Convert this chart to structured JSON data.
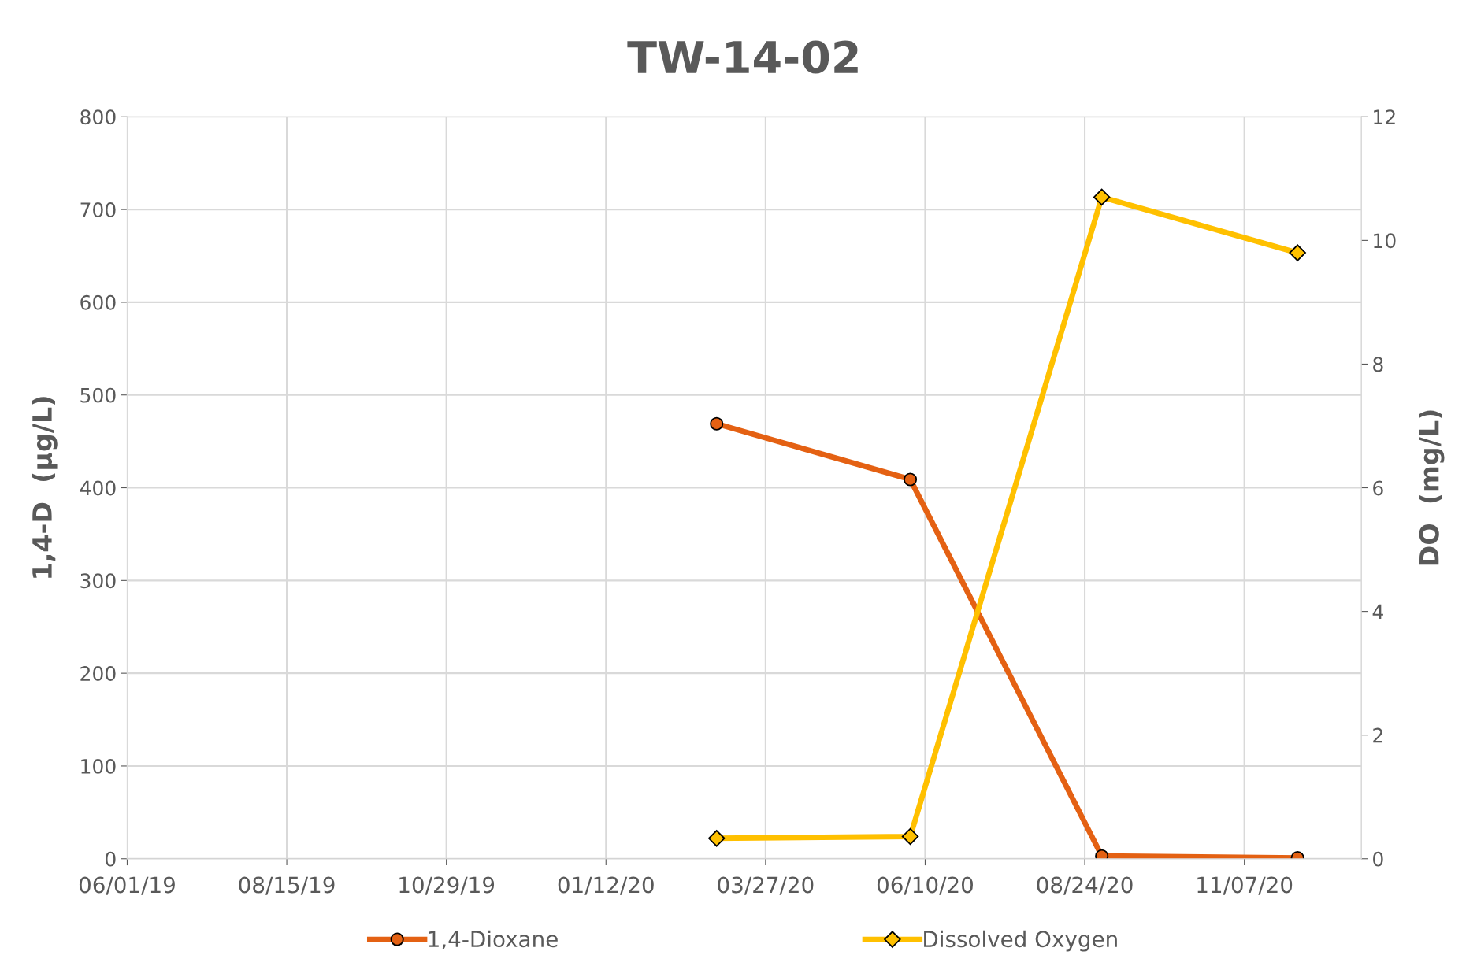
{
  "chart_data": {
    "type": "line",
    "title": "TW-14-02",
    "ylabel": "1,4-D  (µg/L)",
    "y2label": "DO  (mg/L)",
    "xlim": [
      "2019-06-01",
      "2021-01-01"
    ],
    "xticks": [
      {
        "value": "2019-06-01",
        "label": "06/01/19"
      },
      {
        "value": "2019-08-15",
        "label": "08/15/19"
      },
      {
        "value": "2019-10-29",
        "label": "10/29/19"
      },
      {
        "value": "2020-01-12",
        "label": "01/12/20"
      },
      {
        "value": "2020-03-27",
        "label": "03/27/20"
      },
      {
        "value": "2020-06-10",
        "label": "06/10/20"
      },
      {
        "value": "2020-08-24",
        "label": "08/24/20"
      },
      {
        "value": "2020-11-07",
        "label": "11/07/20"
      }
    ],
    "ylim": [
      0,
      800
    ],
    "yticks": [
      0,
      100,
      200,
      300,
      400,
      500,
      600,
      700,
      800
    ],
    "y2lim": [
      0,
      12
    ],
    "y2ticks": [
      0,
      2,
      4,
      6,
      8,
      10,
      12
    ],
    "x": [
      "2020-03-04",
      "2020-06-03",
      "2020-09-01",
      "2020-12-02"
    ],
    "series": [
      {
        "name": "1,4-Dioxane",
        "color": "#e46113",
        "marker": "circle",
        "values": [
          469,
          409,
          3,
          1
        ]
      },
      {
        "name": "Dissolved Oxygen",
        "color": "#ffc000",
        "marker": "diamond",
        "axis": "y2",
        "values": [
          0.33,
          0.36,
          10.7,
          9.8
        ]
      }
    ],
    "grid": true,
    "legend": "bottom"
  }
}
